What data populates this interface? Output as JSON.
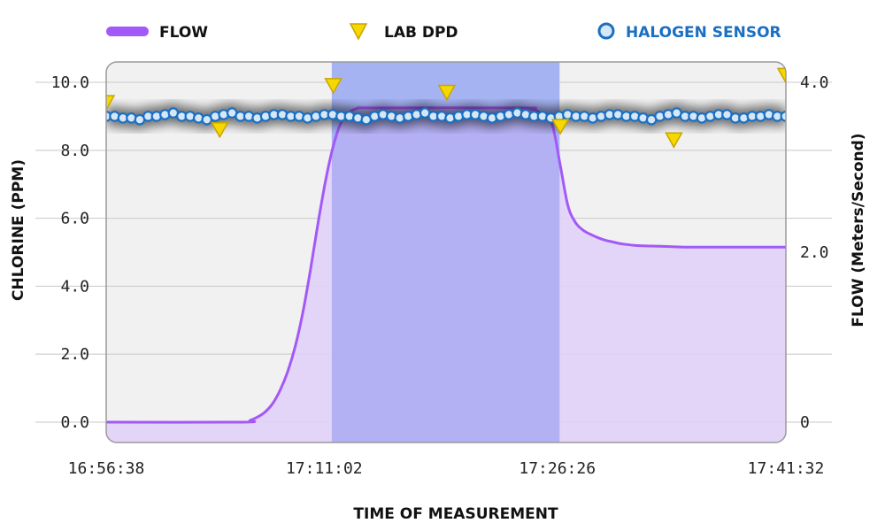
{
  "chart_data": {
    "type": "line",
    "legend": {
      "flow": "FLOW",
      "lab": "LAB DPD",
      "sensor": "HALOGEN SENSOR",
      "position": "top"
    },
    "xlabel": "TIME OF MEASUREMENT",
    "ylabel_left": "CHLORINE (PPM)",
    "ylabel_right": "FLOW (Meters/Second)",
    "x_ticks": [
      "16:56:38",
      "17:11:02",
      "17:26:26",
      "17:41:32"
    ],
    "x_tick_seconds": [
      0,
      864,
      1788,
      2694
    ],
    "y_left_ticks": [
      "0.0",
      "2.0",
      "4.0",
      "6.0",
      "8.0",
      "10.0"
    ],
    "y_left_lim": [
      -0.6,
      10.6
    ],
    "y_right_ticks": [
      "0",
      "2.0",
      "4.0"
    ],
    "y_right_lim": [
      -0.24,
      4.24
    ],
    "grid": true,
    "colors": {
      "flow": "#a259f7",
      "flow_fill": "#e0d2f8",
      "lab": "#f5d800",
      "sensor": "#1b6fc2",
      "sensor_fill": "#d6e8f7",
      "highlight": "#7f86f0"
    },
    "highlight_region": {
      "x_start": 894,
      "x_end": 1797
    },
    "series": [
      {
        "name": "FLOW",
        "axis": "right",
        "x": [
          0,
          540,
          570,
          600,
          630,
          660,
          690,
          720,
          750,
          780,
          810,
          840,
          870,
          900,
          930,
          960,
          990,
          1020,
          1050,
          1650,
          1680,
          1710,
          1740,
          1770,
          1800,
          1830,
          1860,
          1890,
          1920,
          1950,
          1980,
          2010,
          2040,
          2100,
          2200,
          2300,
          2400,
          2694
        ],
        "values": [
          0,
          0,
          0.02,
          0.06,
          0.12,
          0.22,
          0.38,
          0.6,
          0.9,
          1.3,
          1.8,
          2.35,
          2.85,
          3.25,
          3.52,
          3.64,
          3.69,
          3.7,
          3.7,
          3.7,
          3.69,
          3.66,
          3.6,
          3.48,
          3.02,
          2.55,
          2.35,
          2.26,
          2.21,
          2.17,
          2.14,
          2.12,
          2.1,
          2.08,
          2.07,
          2.06,
          2.06,
          2.06
        ]
      },
      {
        "name": "LAB DPD",
        "axis": "left",
        "x": [
          0,
          450,
          900,
          1350,
          1800,
          2250,
          2694
        ],
        "values": [
          9.4,
          8.6,
          9.9,
          9.7,
          8.7,
          8.3,
          10.2
        ]
      },
      {
        "name": "HALOGEN SENSOR",
        "axis": "left",
        "x_start": 0,
        "x_step": 33.25,
        "values": [
          9.0,
          9.0,
          8.95,
          8.95,
          8.9,
          9.0,
          9.0,
          9.05,
          9.1,
          9.0,
          9.0,
          8.95,
          8.9,
          9.0,
          9.05,
          9.1,
          9.0,
          9.0,
          8.95,
          9.0,
          9.05,
          9.05,
          9.0,
          9.0,
          8.95,
          9.0,
          9.05,
          9.05,
          9.0,
          9.0,
          8.95,
          8.9,
          9.0,
          9.05,
          9.0,
          8.95,
          9.0,
          9.05,
          9.1,
          9.0,
          9.0,
          8.95,
          9.0,
          9.05,
          9.05,
          9.0,
          8.95,
          9.0,
          9.05,
          9.1,
          9.05,
          9.0,
          9.0,
          8.95,
          9.0,
          9.05,
          9.0,
          9.0,
          8.95,
          9.0,
          9.05,
          9.05,
          9.0,
          9.0,
          8.95,
          8.9,
          9.0,
          9.05,
          9.1,
          9.0,
          9.0,
          8.95,
          9.0,
          9.05,
          9.05,
          8.95,
          8.95,
          9.0,
          9.0,
          9.05,
          9.0,
          9.0
        ]
      }
    ]
  }
}
